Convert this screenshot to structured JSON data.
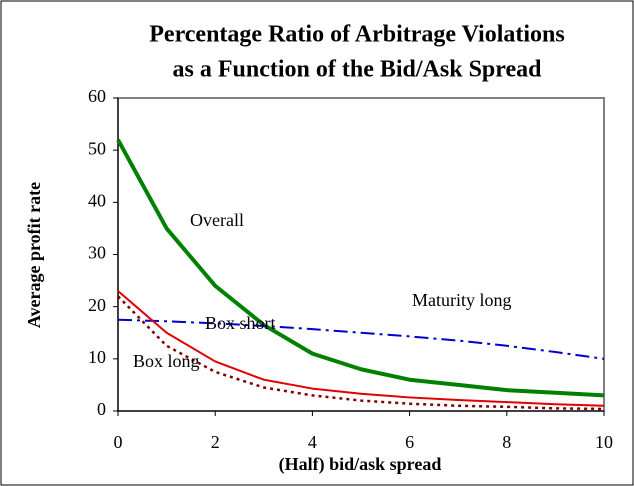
{
  "chart_data": {
    "type": "line",
    "title_lines": [
      "Percentage Ratio of Arbitrage Violations",
      "as a Function of the Bid/Ask Spread"
    ],
    "x_label": "(Half) bid/ask spread",
    "y_label": "Average profit rate",
    "x": [
      0,
      1,
      2,
      3,
      4,
      5,
      6,
      7,
      8,
      9,
      10
    ],
    "series": [
      {
        "name": "Overall",
        "color": "#008000",
        "style": "solid",
        "width": 4,
        "values": [
          52,
          35,
          24,
          16.5,
          11,
          8,
          6,
          5,
          4,
          3.5,
          3
        ]
      },
      {
        "name": "Maturity long",
        "color": "#0000cc",
        "style": "dashdot",
        "width": 2,
        "values": [
          17.5,
          17.2,
          16.8,
          16.3,
          15.7,
          15,
          14.3,
          13.5,
          12.5,
          11.3,
          10
        ]
      },
      {
        "name": "Box short",
        "color": "#e00000",
        "style": "solid",
        "width": 2,
        "values": [
          23,
          15,
          9.5,
          6,
          4.3,
          3.3,
          2.6,
          2.1,
          1.7,
          1.3,
          1
        ]
      },
      {
        "name": "Box long",
        "color": "#800000",
        "style": "dotted",
        "width": 2.5,
        "values": [
          22,
          12.5,
          7.5,
          4.5,
          3,
          2,
          1.4,
          1,
          0.8,
          0.5,
          0.4
        ]
      }
    ],
    "xlim": [
      0,
      10
    ],
    "xticks": [
      0,
      2,
      4,
      6,
      8,
      10
    ],
    "ylim": [
      0,
      60
    ],
    "yticks": [
      0,
      10,
      20,
      30,
      40,
      50,
      60
    ],
    "grid": false
  }
}
